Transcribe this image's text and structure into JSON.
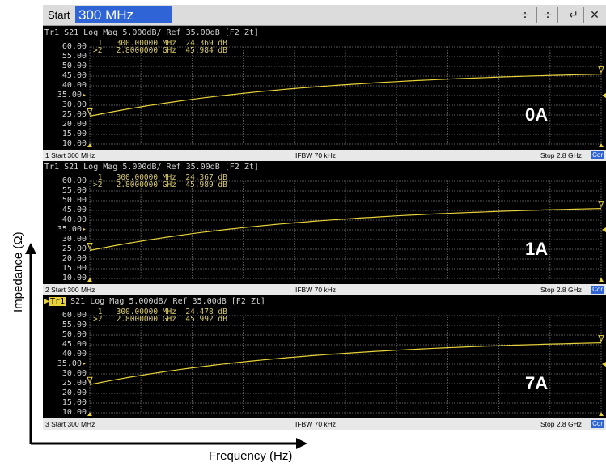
{
  "entry_bar": {
    "label": "Start",
    "value": "300 MHz"
  },
  "axis": {
    "y_label": "Impedance (Ω)",
    "x_label": "Frequency (Hz)"
  },
  "colors": {
    "trace": "#e8d23a",
    "grid": "#5a5a5a",
    "marker_text": "#d8c96a",
    "entry_highlight": "#2e64d6"
  },
  "y_ticks": [
    "60.00",
    "55.00",
    "50.00",
    "45.00",
    "40.00",
    "35.00",
    "30.00",
    "25.00",
    "20.00",
    "15.00",
    "10.00"
  ],
  "ref_tick": "35.00",
  "windows": [
    {
      "header_prefix": "Tr1",
      "header_rest": " S21 Log Mag 5.000dB/ Ref 35.00dB [F2 Zt]",
      "active": false,
      "marker1": " 1   300.00000 MHz  24.369 dB",
      "marker2": ">2   2.8000000 GHz  45.984 dB",
      "label": "0A",
      "status_left": "1 Start 300 MHz",
      "status_mid": "IFBW 70 kHz",
      "status_right": "Stop 2.8 GHz",
      "status_cor": "Cor",
      "start_value": 24.369,
      "end_value": 45.984
    },
    {
      "header_prefix": "Tr1",
      "header_rest": " S21 Log Mag 5.000dB/ Ref 35.00dB [F2 Zt]",
      "active": false,
      "marker1": " 1   300.00000 MHz  24.367 dB",
      "marker2": ">2   2.8000000 GHz  45.989 dB",
      "label": "1A",
      "status_left": "2 Start 300 MHz",
      "status_mid": "IFBW 70 kHz",
      "status_right": "Stop 2.8 GHz",
      "status_cor": "Cor",
      "start_value": 24.367,
      "end_value": 45.989
    },
    {
      "header_prefix": "Tr1",
      "header_rest": " S21 Log Mag 5.000dB/ Ref 35.00dB [F2 Zt]",
      "active": true,
      "marker1": " 1   300.00000 MHz  24.478 dB",
      "marker2": ">2   2.8000000 GHz  45.992 dB",
      "label": "7A",
      "status_left": "3 Start 300 MHz",
      "status_mid": "IFBW 70 kHz",
      "status_right": "Stop 2.8 GHz",
      "status_cor": "Cor",
      "start_value": 24.478,
      "end_value": 45.992
    }
  ]
}
